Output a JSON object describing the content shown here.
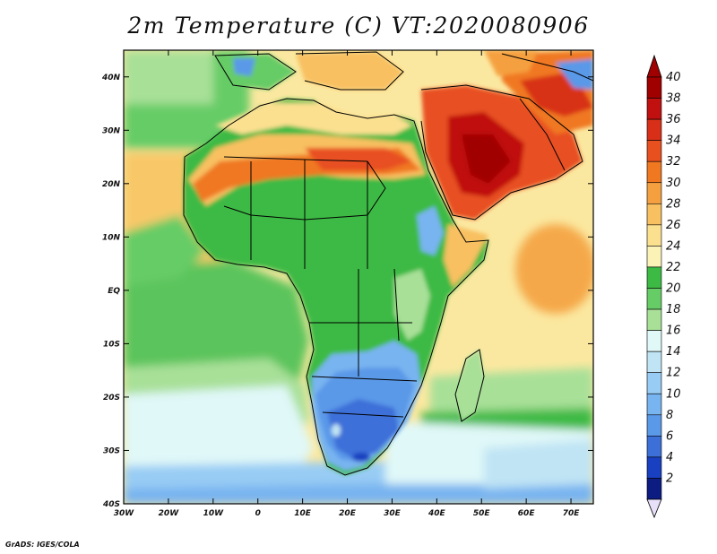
{
  "title": "2m Temperature (C) VT:2020080906",
  "credit": "GrADS: IGES/COLA",
  "map": {
    "region": "Africa and Arabian Peninsula",
    "projection": "lat-lon",
    "lon_range": [
      -30,
      75
    ],
    "lat_range": [
      -40,
      45
    ],
    "lon_ticks": [
      "30W",
      "20W",
      "10W",
      "0",
      "10E",
      "20E",
      "30E",
      "40E",
      "50E",
      "60E",
      "70E"
    ],
    "lat_ticks": [
      "40N",
      "30N",
      "20N",
      "10N",
      "EQ",
      "10S",
      "20S",
      "30S",
      "40S"
    ]
  },
  "colorbar": {
    "labels": [
      "40",
      "38",
      "36",
      "34",
      "32",
      "30",
      "28",
      "26",
      "24",
      "22",
      "20",
      "18",
      "16",
      "14",
      "12",
      "10",
      "8",
      "6",
      "4",
      "2"
    ],
    "colors": [
      "#a00000",
      "#c01010",
      "#d83018",
      "#e85020",
      "#f07820",
      "#f5a040",
      "#f8c060",
      "#fbe090",
      "#fbf2b8",
      "#3cba44",
      "#66cc66",
      "#a8e098",
      "#e0f8f8",
      "#c0e4f4",
      "#98ccf4",
      "#78b4f0",
      "#5a98e8",
      "#3c70d8",
      "#1840c0",
      "#0c1c80"
    ],
    "top_arrow_color": "#a00000",
    "bottom_arrow_color": "#e8e0f8"
  },
  "colors": {
    "land_cool": "#3c70d8",
    "ocean_warm": "#fbe090",
    "border": "#000000"
  }
}
